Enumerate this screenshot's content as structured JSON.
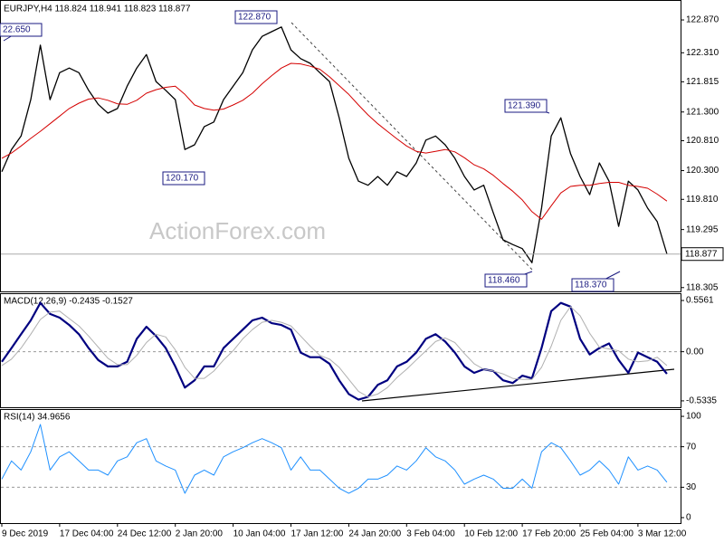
{
  "chart_data": [
    {
      "type": "line",
      "title": "EURJPY,H4  118.824 118.941 118.823 118.877",
      "watermark": "ActionForex.com",
      "categories": [
        "9 Dec 2019",
        null,
        null,
        null,
        null,
        null,
        "17 Dec 04:00",
        null,
        null,
        null,
        null,
        null,
        "24 Dec 12:00",
        null,
        null,
        null,
        null,
        null,
        "2 Jan 20:00",
        null,
        null,
        null,
        null,
        null,
        "10 Jan 04:00",
        null,
        null,
        null,
        null,
        null,
        "17 Jan 12:00",
        null,
        null,
        null,
        null,
        null,
        "24 Jan 20:00",
        null,
        null,
        null,
        null,
        null,
        "3 Feb 04:00",
        null,
        null,
        null,
        null,
        null,
        "10 Feb 12:00",
        null,
        null,
        null,
        null,
        null,
        "17 Feb 20:00",
        null,
        null,
        null,
        null,
        null,
        "25 Feb 04:00",
        null,
        null,
        null,
        null,
        null,
        "3 Mar 12:00",
        null,
        null,
        null
      ],
      "series": [
        {
          "color": "#000000",
          "values": [
            120.28,
            120.66,
            120.89,
            121.51,
            122.44,
            121.51,
            121.97,
            122.05,
            121.97,
            121.67,
            121.43,
            121.28,
            121.36,
            121.74,
            122.05,
            122.28,
            121.82,
            121.67,
            121.51,
            120.66,
            120.74,
            121.05,
            121.13,
            121.51,
            121.74,
            121.97,
            122.36,
            122.59,
            122.67,
            122.75,
            122.36,
            122.21,
            122.13,
            121.97,
            121.82,
            121.2,
            120.51,
            120.12,
            120.05,
            120.2,
            120.05,
            120.28,
            120.2,
            120.43,
            120.82,
            120.89,
            120.74,
            120.51,
            120.2,
            119.97,
            120.05,
            119.58,
            119.12,
            119.04,
            118.97,
            118.73,
            119.66,
            120.89,
            121.2,
            120.59,
            120.2,
            119.89,
            120.43,
            120.12,
            119.35,
            120.12,
            119.97,
            119.66,
            119.43,
            118.88
          ]
        },
        {
          "color": "#d40000",
          "values": [
            120.51,
            120.6,
            120.72,
            120.85,
            120.97,
            121.1,
            121.23,
            121.36,
            121.45,
            121.52,
            121.54,
            121.5,
            121.44,
            121.43,
            121.5,
            121.62,
            121.68,
            121.72,
            121.74,
            121.6,
            121.42,
            121.36,
            121.33,
            121.35,
            121.42,
            121.5,
            121.62,
            121.78,
            121.92,
            122.05,
            122.13,
            122.12,
            122.08,
            122.03,
            121.9,
            121.75,
            121.6,
            121.42,
            121.25,
            121.1,
            120.97,
            120.84,
            120.72,
            120.63,
            120.6,
            120.63,
            120.66,
            120.62,
            120.52,
            120.4,
            120.33,
            120.22,
            120.08,
            119.95,
            119.8,
            119.6,
            119.47,
            119.7,
            119.92,
            120.03,
            120.05,
            120.05,
            120.08,
            120.1,
            120.1,
            120.05,
            120.03,
            120.0,
            119.9,
            119.78
          ]
        }
      ],
      "ylim": [
        118.24,
        123.21
      ],
      "yticks": [
        {
          "value": 122.87,
          "label": "122.870"
        },
        {
          "value": 122.31,
          "label": "122.310"
        },
        121.815,
        {
          "value": 121.3,
          "label": "121.300"
        },
        {
          "value": 120.81,
          "label": "120.810"
        },
        {
          "value": 120.3,
          "label": "120.300"
        },
        {
          "value": 119.81,
          "label": "119.810"
        },
        119.295,
        118.305
      ],
      "last_value": 118.877,
      "annotations": [
        "22.650",
        "122.870",
        "120.170",
        "121.390",
        "118.460",
        "118.370"
      ]
    },
    {
      "type": "line",
      "title": "MACD(12,26,9) -0.2435 -0.1527",
      "series": [
        {
          "color": "#000080",
          "values": [
            -0.11,
            0.04,
            0.19,
            0.34,
            0.53,
            0.41,
            0.37,
            0.29,
            0.19,
            0.04,
            -0.09,
            -0.16,
            -0.16,
            -0.11,
            0.14,
            0.27,
            0.17,
            0.04,
            -0.16,
            -0.39,
            -0.31,
            -0.16,
            -0.16,
            0.04,
            0.14,
            0.24,
            0.34,
            0.37,
            0.31,
            0.29,
            0.24,
            -0.01,
            -0.06,
            -0.06,
            -0.13,
            -0.31,
            -0.46,
            -0.52,
            -0.49,
            -0.36,
            -0.31,
            -0.16,
            -0.11,
            -0.01,
            0.14,
            0.19,
            0.11,
            -0.01,
            -0.16,
            -0.23,
            -0.19,
            -0.21,
            -0.31,
            -0.34,
            -0.26,
            -0.29,
            0.04,
            0.44,
            0.53,
            0.49,
            0.14,
            -0.03,
            0.04,
            0.09,
            -0.09,
            -0.23,
            -0.01,
            -0.06,
            -0.11,
            -0.24
          ]
        },
        {
          "color": "#b0b0b0",
          "values": [
            -0.15,
            -0.08,
            0.04,
            0.19,
            0.35,
            0.43,
            0.44,
            0.36,
            0.28,
            0.17,
            0.05,
            -0.07,
            -0.14,
            -0.14,
            -0.04,
            0.1,
            0.19,
            0.16,
            0.02,
            -0.17,
            -0.29,
            -0.29,
            -0.21,
            -0.09,
            0.01,
            0.14,
            0.24,
            0.32,
            0.34,
            0.32,
            0.28,
            0.17,
            0.06,
            -0.04,
            -0.08,
            -0.17,
            -0.3,
            -0.43,
            -0.49,
            -0.46,
            -0.39,
            -0.28,
            -0.19,
            -0.09,
            0.01,
            0.11,
            0.15,
            0.1,
            -0.02,
            -0.13,
            -0.19,
            -0.21,
            -0.24,
            -0.29,
            -0.3,
            -0.3,
            -0.17,
            0.06,
            0.34,
            0.49,
            0.39,
            0.2,
            0.05,
            0.03,
            0.01,
            -0.08,
            -0.11,
            -0.1,
            -0.06,
            -0.15
          ]
        }
      ],
      "ylim": [
        -0.603,
        0.635
      ],
      "yticks": [
        0.5561,
        {
          "value": 0,
          "label": "0.00"
        },
        -0.5335
      ],
      "levels": [
        0
      ]
    },
    {
      "type": "line",
      "title": "RSI(14) 34.9656",
      "series": [
        {
          "color": "#1e90ff",
          "values": [
            38,
            56,
            47,
            65,
            92,
            47,
            60,
            65,
            56,
            47,
            47,
            42,
            56,
            60,
            74,
            78,
            56,
            51,
            47,
            24,
            42,
            47,
            42,
            60,
            65,
            69,
            74,
            78,
            74,
            69,
            47,
            60,
            47,
            47,
            38,
            29,
            24,
            29,
            38,
            38,
            42,
            51,
            47,
            56,
            69,
            60,
            56,
            47,
            33,
            38,
            42,
            38,
            29,
            29,
            38,
            29,
            65,
            74,
            69,
            56,
            42,
            47,
            56,
            47,
            33,
            60,
            47,
            51,
            47,
            35
          ]
        }
      ],
      "ylim": [
        -5.4,
        107.2
      ],
      "yticks": [
        100,
        70,
        30,
        0
      ],
      "levels": [
        70,
        30
      ]
    }
  ]
}
